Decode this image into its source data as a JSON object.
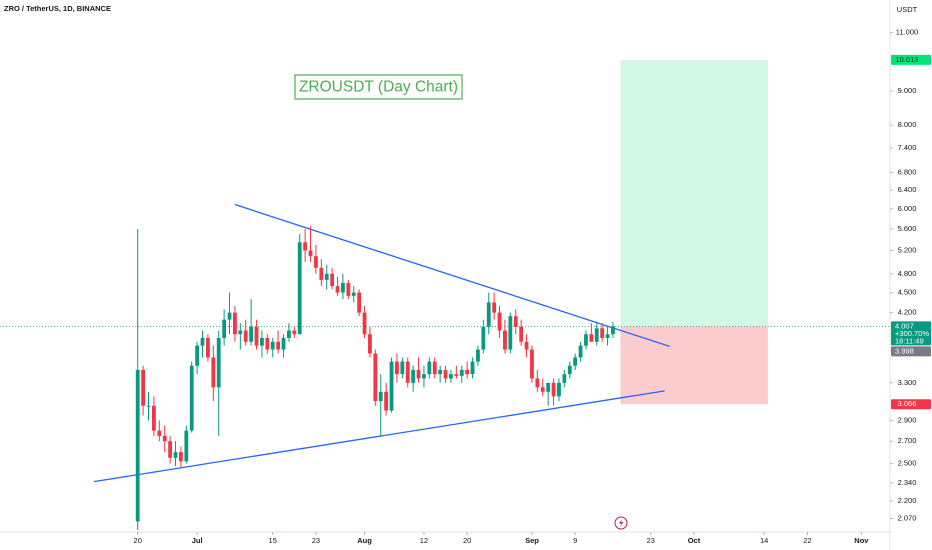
{
  "chart_data": {
    "type": "candlestick",
    "header": "ZRO / TetherUS, 1D, BINANCE",
    "currency": "USDT",
    "title": "ZROUSDT (Day Chart)",
    "log_scale": true,
    "grid": false,
    "up_color": "#089981",
    "down_color": "#f23645",
    "xlim": [
      -25.5,
      139.3
    ],
    "ylim": [
      1.99,
      12.3
    ],
    "xticks": [
      {
        "value": 0,
        "label": "20"
      },
      {
        "value": 11,
        "label": "Jul"
      },
      {
        "value": 25,
        "label": "15"
      },
      {
        "value": 33,
        "label": "23"
      },
      {
        "value": 42,
        "label": "Aug"
      },
      {
        "value": 53,
        "label": "12"
      },
      {
        "value": 61,
        "label": "20"
      },
      {
        "value": 73,
        "label": "Sep"
      },
      {
        "value": 81,
        "label": "9"
      },
      {
        "value": 95,
        "label": "23"
      },
      {
        "value": 103,
        "label": "Oct"
      },
      {
        "value": 116,
        "label": "14"
      },
      {
        "value": 124,
        "label": "22"
      },
      {
        "value": 134,
        "label": "Nov"
      }
    ],
    "yticks": [
      {
        "value": 11,
        "label": "11.000"
      },
      {
        "value": 9,
        "label": "9.000"
      },
      {
        "value": 8,
        "label": "8.000"
      },
      {
        "value": 7.4,
        "label": "7.400"
      },
      {
        "value": 6.8,
        "label": "6.800"
      },
      {
        "value": 6.4,
        "label": "6.400"
      },
      {
        "value": 6,
        "label": "6.000"
      },
      {
        "value": 5.6,
        "label": "5.600"
      },
      {
        "value": 5.2,
        "label": "5.200"
      },
      {
        "value": 4.8,
        "label": "4.800"
      },
      {
        "value": 4.5,
        "label": "4.500"
      },
      {
        "value": 4.2,
        "label": "4.200"
      },
      {
        "value": 3.3,
        "label": "3.300"
      },
      {
        "value": 2.9,
        "label": "2.900"
      },
      {
        "value": 2.7,
        "label": "2.700"
      },
      {
        "value": 2.5,
        "label": "2.500"
      },
      {
        "value": 2.34,
        "label": "2.340"
      },
      {
        "value": 2.2,
        "label": "2.200"
      },
      {
        "value": 2.07,
        "label": "2.070"
      }
    ],
    "candles": {
      "x": [
        0,
        1,
        2,
        3,
        4,
        5,
        6,
        7,
        8,
        9,
        10,
        11,
        12,
        13,
        14,
        15,
        16,
        17,
        18,
        19,
        20,
        21,
        22,
        23,
        24,
        25,
        26,
        27,
        28,
        29,
        30,
        31,
        32,
        33,
        34,
        35,
        36,
        37,
        38,
        39,
        40,
        41,
        42,
        43,
        44,
        45,
        46,
        47,
        48,
        49,
        50,
        51,
        52,
        53,
        54,
        55,
        56,
        57,
        58,
        59,
        60,
        61,
        62,
        63,
        64,
        65,
        66,
        67,
        68,
        69,
        70,
        71,
        72,
        73,
        74,
        75,
        76,
        77,
        78,
        79,
        80,
        81,
        82,
        83,
        84,
        85,
        86,
        87,
        88
      ],
      "open": [
        2.05,
        3.45,
        3.05,
        3.05,
        2.8,
        2.75,
        2.7,
        2.55,
        2.6,
        2.52,
        2.8,
        3.5,
        3.75,
        3.85,
        3.6,
        3.25,
        3.85,
        4.1,
        4.2,
        3.9,
        3.95,
        3.8,
        4.0,
        3.75,
        3.85,
        3.7,
        3.8,
        3.7,
        3.85,
        3.95,
        3.9,
        5.35,
        5.2,
        5.1,
        4.9,
        4.7,
        4.8,
        4.6,
        4.5,
        4.65,
        4.45,
        4.5,
        4.2,
        3.9,
        3.65,
        3.1,
        3.2,
        3.0,
        3.55,
        3.4,
        3.55,
        3.3,
        3.45,
        3.35,
        3.4,
        3.55,
        3.4,
        3.45,
        3.35,
        3.4,
        3.38,
        3.45,
        3.4,
        3.55,
        3.7,
        4.0,
        4.35,
        4.2,
        3.95,
        3.7,
        4.15,
        4.0,
        3.8,
        3.7,
        3.35,
        3.25,
        3.2,
        3.3,
        3.15,
        3.3,
        3.4,
        3.5,
        3.6,
        3.75,
        3.9,
        3.8,
        3.98,
        3.85,
        3.9
      ],
      "high": [
        5.6,
        3.5,
        3.2,
        3.15,
        2.9,
        2.85,
        2.75,
        2.7,
        2.65,
        2.85,
        3.55,
        3.8,
        3.95,
        3.9,
        3.75,
        3.95,
        4.25,
        4.5,
        4.3,
        4.05,
        4.1,
        4.4,
        4.1,
        3.95,
        3.9,
        3.85,
        3.95,
        3.9,
        4.05,
        4.0,
        5.5,
        5.6,
        5.65,
        5.3,
        5.05,
        4.95,
        4.9,
        4.75,
        4.8,
        4.7,
        4.6,
        4.55,
        4.3,
        4.0,
        3.7,
        3.4,
        3.3,
        3.6,
        3.65,
        3.6,
        3.6,
        3.5,
        3.6,
        3.5,
        3.6,
        3.6,
        3.5,
        3.5,
        3.45,
        3.5,
        3.5,
        3.55,
        3.6,
        3.75,
        4.1,
        4.5,
        4.5,
        4.3,
        4.1,
        4.2,
        4.25,
        4.1,
        3.9,
        3.75,
        3.45,
        3.35,
        3.3,
        3.35,
        3.35,
        3.45,
        3.55,
        3.65,
        3.8,
        3.95,
        4.05,
        4.05,
        4.05,
        4.0,
        4.07
      ],
      "low": [
        1.99,
        2.95,
        2.9,
        2.75,
        2.7,
        2.6,
        2.5,
        2.48,
        2.47,
        2.5,
        2.78,
        3.4,
        3.6,
        3.55,
        3.1,
        2.75,
        3.75,
        3.9,
        3.8,
        3.7,
        3.75,
        3.75,
        3.7,
        3.6,
        3.65,
        3.6,
        3.65,
        3.6,
        3.8,
        3.85,
        3.9,
        5.0,
        5.0,
        4.8,
        4.6,
        4.55,
        4.55,
        4.45,
        4.4,
        4.4,
        4.35,
        4.15,
        3.85,
        3.6,
        3.05,
        2.75,
        2.95,
        2.98,
        3.3,
        3.35,
        3.25,
        3.2,
        3.3,
        3.25,
        3.35,
        3.35,
        3.3,
        3.3,
        3.3,
        3.35,
        3.3,
        3.35,
        3.35,
        3.5,
        3.65,
        3.9,
        4.1,
        3.85,
        3.65,
        3.65,
        3.9,
        3.75,
        3.6,
        3.3,
        3.2,
        3.15,
        3.05,
        3.05,
        3.1,
        3.25,
        3.35,
        3.45,
        3.55,
        3.7,
        3.85,
        3.75,
        3.8,
        3.75,
        3.85
      ],
      "close": [
        3.45,
        3.05,
        3.05,
        2.8,
        2.75,
        2.7,
        2.55,
        2.6,
        2.52,
        2.8,
        3.5,
        3.75,
        3.85,
        3.6,
        3.25,
        3.85,
        4.1,
        4.2,
        3.9,
        3.95,
        3.8,
        4.0,
        3.75,
        3.85,
        3.7,
        3.8,
        3.7,
        3.85,
        3.95,
        3.9,
        5.35,
        5.2,
        5.1,
        4.9,
        4.7,
        4.8,
        4.6,
        4.5,
        4.65,
        4.45,
        4.5,
        4.2,
        3.9,
        3.65,
        3.1,
        3.2,
        3.0,
        3.55,
        3.4,
        3.55,
        3.3,
        3.45,
        3.35,
        3.4,
        3.55,
        3.4,
        3.45,
        3.35,
        3.4,
        3.38,
        3.45,
        3.4,
        3.55,
        3.7,
        4.0,
        4.35,
        4.2,
        3.95,
        3.7,
        4.15,
        4.0,
        3.8,
        3.7,
        3.35,
        3.25,
        3.2,
        3.3,
        3.15,
        3.3,
        3.4,
        3.5,
        3.6,
        3.75,
        3.9,
        3.8,
        3.98,
        3.85,
        3.9,
        4.007
      ]
    },
    "trendlines": [
      {
        "x": [
          18,
          98.5
        ],
        "y": [
          6.09,
          3.74
        ],
        "color": "#2962ff"
      },
      {
        "x": [
          -8.1,
          97.6
        ],
        "y": [
          2.35,
          3.21
        ],
        "color": "#2962ff"
      }
    ],
    "position": {
      "x": [
        89.4,
        116.7
      ],
      "entry": 4.007,
      "target": 10.013,
      "stop": 3.066,
      "profit_color": "#d4f8e6",
      "loss_color": "#fccbcd"
    },
    "last_price": {
      "value": 4.007,
      "change": "+300.70%",
      "countdown": "18:11:49"
    },
    "prev_price": 3.998
  }
}
